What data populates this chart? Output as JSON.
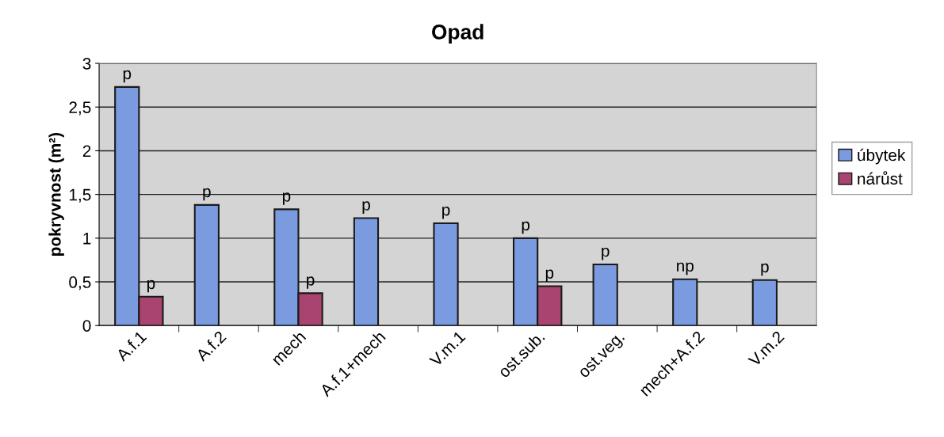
{
  "chart_data": {
    "type": "bar",
    "title": "Opad",
    "ylabel": "pokryvnost (m²)",
    "categories": [
      "A.f.1",
      "A.f.2",
      "mech",
      "A.f.1+mech",
      "V.m.1",
      "ost.sub.",
      "ost.veg.",
      "mech+A.f.2",
      "V.m.2"
    ],
    "series": [
      {
        "name": "úbytek",
        "color": "#7b9be0",
        "values": [
          2.73,
          1.38,
          1.33,
          1.23,
          1.17,
          1.0,
          0.7,
          0.53,
          0.52
        ],
        "value_labels": [
          "p",
          "p",
          "p",
          "p",
          "p",
          "p",
          "p",
          "np",
          "p"
        ]
      },
      {
        "name": "nárůst",
        "color": "#a8446f",
        "values": [
          0.33,
          null,
          0.37,
          null,
          null,
          0.45,
          null,
          null,
          null
        ],
        "value_labels": [
          "p",
          null,
          "p",
          null,
          null,
          "p",
          null,
          null,
          null
        ]
      }
    ],
    "ylim": [
      0,
      3
    ],
    "yticks": [
      0,
      {
        "value": 0.5,
        "label": "0,5"
      },
      1,
      {
        "value": 1.5,
        "label": "1,5"
      },
      2,
      {
        "value": 2.5,
        "label": "2,5"
      },
      3
    ],
    "grid": "y",
    "legend": "right"
  }
}
